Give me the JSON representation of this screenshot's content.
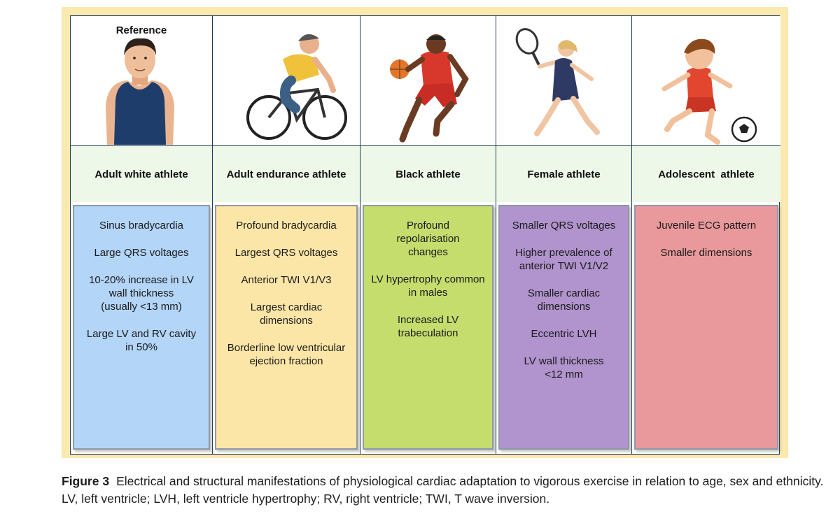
{
  "figure": {
    "reference_label": "Reference",
    "columns": [
      {
        "header": "Adult white athlete",
        "icon": "reference-man-icon",
        "box_color": "#b3d5f7",
        "items": [
          "Sinus bradycardia",
          "Large QRS voltages",
          "10-20% increase in LV\nwall thickness\n(usually  <13 mm)",
          "Large LV and RV cavity\nin 50%"
        ]
      },
      {
        "header": "Adult endurance athlete",
        "icon": "cyclist-icon",
        "box_color": "#fce6a7",
        "items": [
          "Profound bradycardia",
          "Largest QRS voltages",
          "Anterior TWI V1/V3",
          "Largest cardiac\ndimensions",
          "Borderline low ventricular\nejection fraction"
        ]
      },
      {
        "header": "Black athlete",
        "icon": "basketball-player-icon",
        "box_color": "#c5dd6d",
        "items": [
          "Profound\nrepolarisation\nchanges",
          "LV hypertrophy common\nin males",
          "Increased LV\ntrabeculation"
        ]
      },
      {
        "header": "Female athlete",
        "icon": "tennis-player-icon",
        "box_color": "#b193cd",
        "items": [
          "Smaller QRS voltages",
          "Higher prevalence of\nanterior TWI V1/V2",
          "Smaller cardiac\ndimensions",
          "Eccentric LVH",
          "LV wall thickness\n<12 mm"
        ]
      },
      {
        "header": "Adolescent  athlete",
        "icon": "soccer-boy-icon",
        "box_color": "#e9999c",
        "items": [
          "Juvenile  ECG pattern",
          "Smaller dimensions"
        ]
      }
    ]
  },
  "caption": {
    "label": "Figure 3",
    "text": "Electrical and structural manifestations of physiological cardiac adaptation to vigorous exercise in relation to age, sex and ethnicity. LV, left ventricle; LVH, left ventricle hypertrophy; RV, right ventricle; TWI, T wave inversion."
  }
}
